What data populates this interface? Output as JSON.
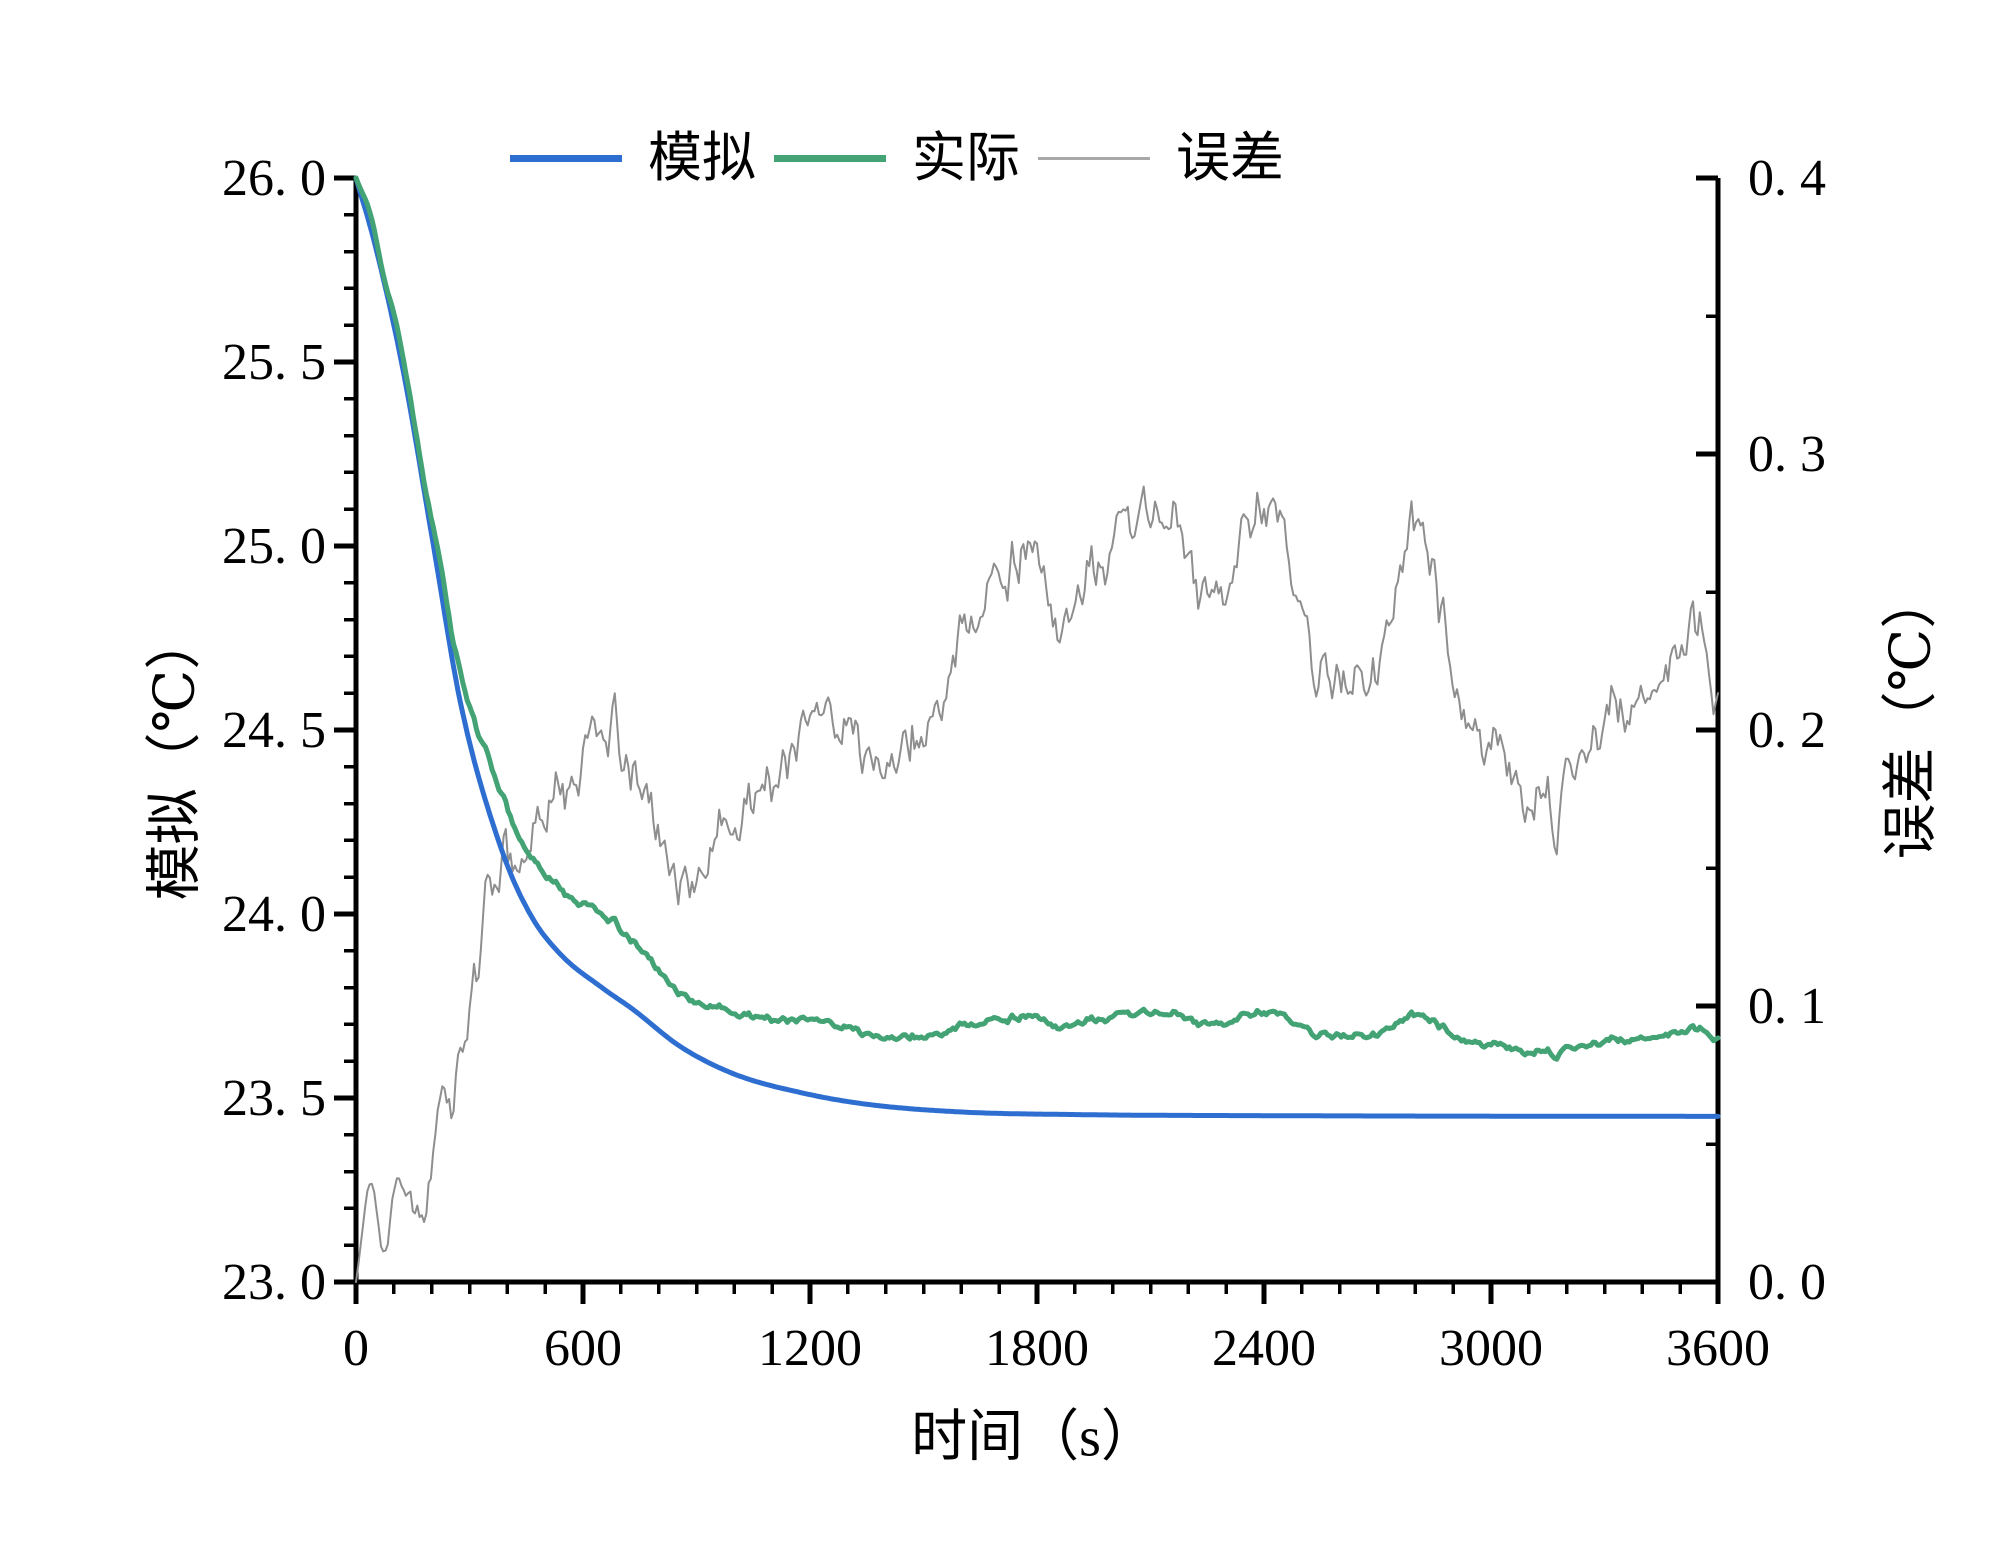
{
  "figure": {
    "background": "#ffffff"
  },
  "legend": {
    "items": [
      {
        "name": "simulated",
        "label": "模拟",
        "color": "#2e6ed0",
        "thickness": 7
      },
      {
        "name": "actual",
        "label": "实际",
        "color": "#43a374",
        "thickness": 7
      },
      {
        "name": "error",
        "label": "误差",
        "color": "#a8a8a8",
        "thickness": 3
      }
    ]
  },
  "axes": {
    "x": {
      "label": "时间（s）",
      "min": 0,
      "max": 3600,
      "minor_step": 100,
      "ticks": [
        {
          "value": 0,
          "label": "0"
        },
        {
          "value": 600,
          "label": "600"
        },
        {
          "value": 1200,
          "label": "1200"
        },
        {
          "value": 1800,
          "label": "1800"
        },
        {
          "value": 2400,
          "label": "2400"
        },
        {
          "value": 3000,
          "label": "3000"
        },
        {
          "value": 3600,
          "label": "3600"
        }
      ]
    },
    "y_left": {
      "label": "模拟（℃）",
      "min": 23.0,
      "max": 26.0,
      "minor_step": 0.1,
      "ticks": [
        {
          "value": 23.0,
          "label": "23. 0"
        },
        {
          "value": 23.5,
          "label": "23. 5"
        },
        {
          "value": 24.0,
          "label": "24. 0"
        },
        {
          "value": 24.5,
          "label": "24. 5"
        },
        {
          "value": 25.0,
          "label": "25. 0"
        },
        {
          "value": 25.5,
          "label": "25. 5"
        },
        {
          "value": 26.0,
          "label": "26. 0"
        }
      ]
    },
    "y_right": {
      "label": "误差（℃）",
      "min": 0.0,
      "max": 0.4,
      "minor_step": 0.05,
      "ticks": [
        {
          "value": 0.0,
          "label": "0. 0"
        },
        {
          "value": 0.1,
          "label": "0. 1"
        },
        {
          "value": 0.2,
          "label": "0. 2"
        },
        {
          "value": 0.3,
          "label": "0. 3"
        },
        {
          "value": 0.4,
          "label": "0. 4"
        }
      ]
    }
  },
  "chart_data": {
    "type": "line",
    "x_unit": "s",
    "sample_step_s": 6,
    "grid": false,
    "legend_position": "top",
    "series": [
      {
        "id": "simulated",
        "name": "模拟",
        "axis": "y_left",
        "color": "#2e6ed0",
        "width": 5,
        "description": "smooth simulated cooling curve settling at 23.45 °C",
        "keyframes": [
          [
            0,
            26.0
          ],
          [
            50,
            25.82
          ],
          [
            124,
            25.48
          ],
          [
            200,
            25.03
          ],
          [
            277,
            24.57
          ],
          [
            383,
            24.18
          ],
          [
            460,
            24.0
          ],
          [
            541,
            23.89
          ],
          [
            650,
            23.8
          ],
          [
            733,
            23.74
          ],
          [
            857,
            23.64
          ],
          [
            1000,
            23.565
          ],
          [
            1174,
            23.515
          ],
          [
            1350,
            23.483
          ],
          [
            1600,
            23.462
          ],
          [
            1900,
            23.455
          ],
          [
            2400,
            23.452
          ],
          [
            3600,
            23.45
          ]
        ]
      },
      {
        "id": "actual",
        "name": "实际",
        "axis": "y_left",
        "color": "#43a374",
        "width": 5,
        "derive": "simulated_plus_error",
        "description": "measured curve = simulated + error, settles near 23.7 °C"
      },
      {
        "id": "error",
        "name": "误差",
        "axis": "y_right",
        "color": "#8e8e8e",
        "width": 2,
        "description": "noisy error curve rising from 0 to ~0.2–0.27 °C",
        "keyframes": [
          [
            0,
            0
          ],
          [
            40,
            0.038
          ],
          [
            72,
            0.015
          ],
          [
            105,
            0.045
          ],
          [
            140,
            0.052
          ],
          [
            165,
            0.042
          ],
          [
            220,
            0.075
          ],
          [
            270,
            0.095
          ],
          [
            320,
            0.125
          ],
          [
            383,
            0.158
          ],
          [
            430,
            0.148
          ],
          [
            460,
            0.155
          ],
          [
            520,
            0.168
          ],
          [
            600,
            0.178
          ],
          [
            640,
            0.2
          ],
          [
            665,
            0.205
          ],
          [
            700,
            0.195
          ],
          [
            760,
            0.17
          ],
          [
            805,
            0.155
          ],
          [
            860,
            0.142
          ],
          [
            910,
            0.152
          ],
          [
            963,
            0.16
          ],
          [
            1030,
            0.17
          ],
          [
            1068,
            0.177
          ],
          [
            1120,
            0.183
          ],
          [
            1174,
            0.19
          ],
          [
            1240,
            0.205
          ],
          [
            1290,
            0.215
          ],
          [
            1340,
            0.2
          ],
          [
            1385,
            0.19
          ],
          [
            1440,
            0.196
          ],
          [
            1490,
            0.2
          ],
          [
            1550,
            0.21
          ],
          [
            1595,
            0.22
          ],
          [
            1660,
            0.24
          ],
          [
            1700,
            0.256
          ],
          [
            1777,
            0.272
          ],
          [
            1864,
            0.231
          ],
          [
            1912,
            0.241
          ],
          [
            1960,
            0.245
          ],
          [
            2017,
            0.25
          ],
          [
            2080,
            0.262
          ],
          [
            2164,
            0.274
          ],
          [
            2230,
            0.247
          ],
          [
            2296,
            0.242
          ],
          [
            2349,
            0.271
          ],
          [
            2423,
            0.268
          ],
          [
            2480,
            0.235
          ],
          [
            2549,
            0.207
          ],
          [
            2610,
            0.214
          ],
          [
            2673,
            0.217
          ],
          [
            2756,
            0.25
          ],
          [
            2810,
            0.262
          ],
          [
            2861,
            0.237
          ],
          [
            2910,
            0.222
          ],
          [
            2967,
            0.203
          ],
          [
            3020,
            0.197
          ],
          [
            3072,
            0.192
          ],
          [
            3130,
            0.185
          ],
          [
            3180,
            0.18
          ],
          [
            3230,
            0.192
          ],
          [
            3283,
            0.207
          ],
          [
            3340,
            0.21
          ],
          [
            3389,
            0.214
          ],
          [
            3440,
            0.226
          ],
          [
            3494,
            0.243
          ],
          [
            3545,
            0.253
          ],
          [
            3575,
            0.246
          ],
          [
            3600,
            0.227
          ]
        ],
        "noise": {
          "seed": 13,
          "slow": {
            "alpha": 0.96,
            "amp": 0.01
          },
          "fast": {
            "alpha": 0.7,
            "amp": 0.012
          },
          "ramp_s": 250
        }
      }
    ]
  }
}
